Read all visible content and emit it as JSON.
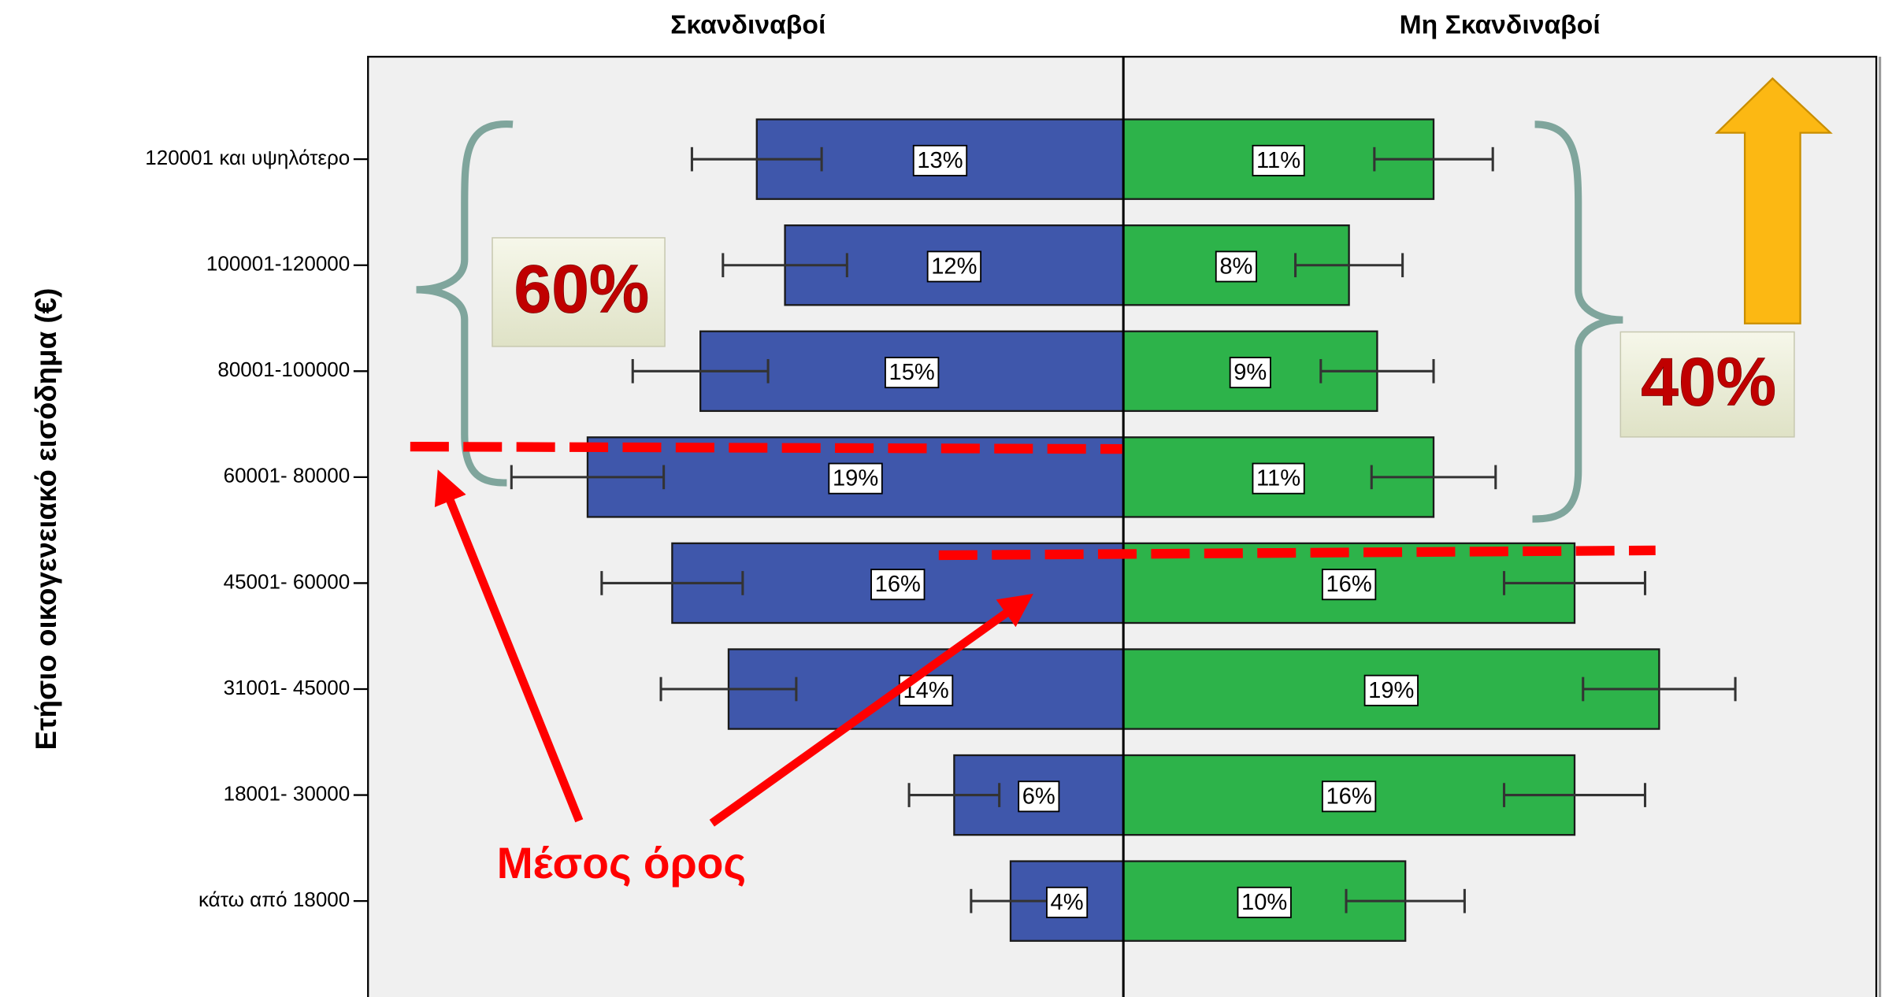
{
  "chart_data": {
    "type": "butterfly",
    "y_axis_label": "Ετήσιο οικογενειακό εισόδημα (€)",
    "categories": [
      "120001 και υψηλότερο",
      "100001-120000",
      "80001-100000",
      "60001- 80000",
      "45001- 60000",
      "31001- 45000",
      "18001- 30000",
      "κάτω από 18000"
    ],
    "xlim": [
      0,
      26.7
    ],
    "series": [
      {
        "name": "Σκανδιναβοί",
        "color": "#3f57ab",
        "values": [
          13,
          12,
          15,
          19,
          16,
          14,
          6,
          4
        ],
        "value_labels": [
          "13%",
          "12%",
          "15%",
          "19%",
          "16%",
          "14%",
          "6%",
          "4%"
        ],
        "errors": [
          2.3,
          2.2,
          2.4,
          2.7,
          2.5,
          2.4,
          1.6,
          1.4
        ]
      },
      {
        "name": "Μη Σκανδιναβοί",
        "color": "#2db34a",
        "values": [
          11,
          8,
          9,
          11,
          16,
          19,
          16,
          10
        ],
        "value_labels": [
          "11%",
          "8%",
          "9%",
          "11%",
          "16%",
          "19%",
          "16%",
          "10%"
        ],
        "errors": [
          2.1,
          1.9,
          2.0,
          2.2,
          2.5,
          2.7,
          2.5,
          2.1
        ]
      }
    ],
    "annotations": [
      "60%",
      "40%",
      "Μέσος όρος"
    ]
  }
}
